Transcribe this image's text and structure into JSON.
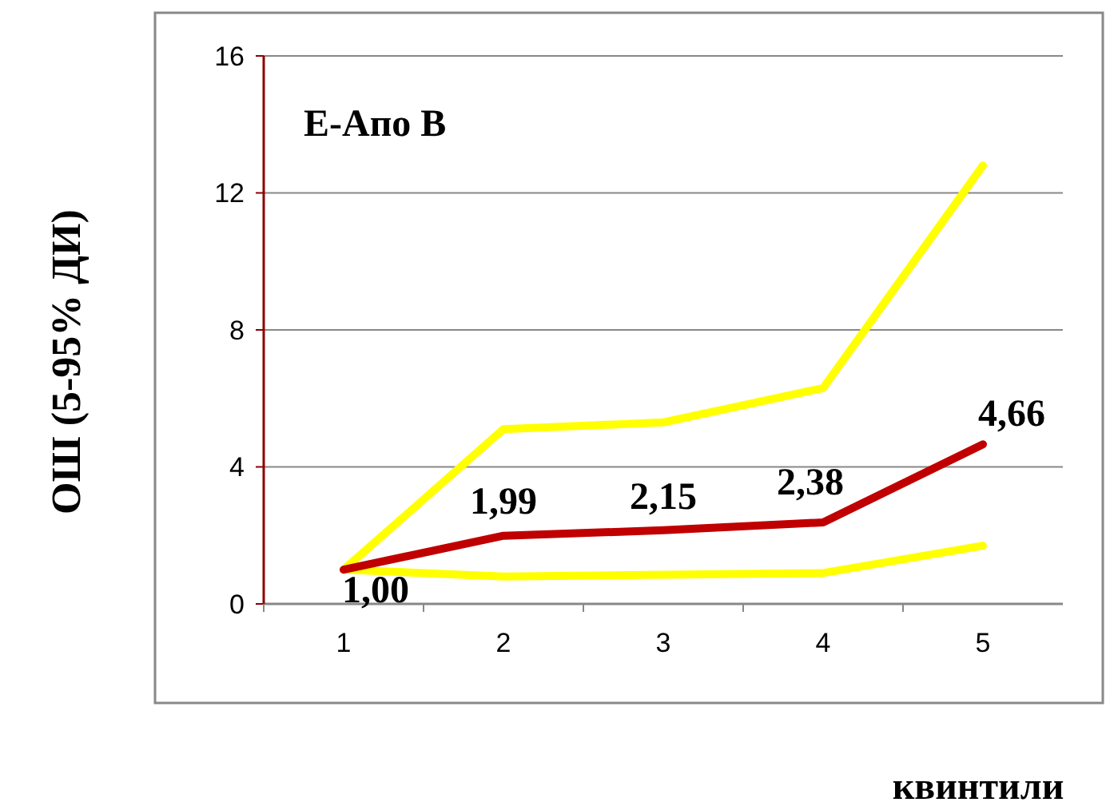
{
  "chart_data": {
    "type": "line",
    "title": "Е-Апо В",
    "xlabel": "квинтили",
    "ylabel": "ОШ (5-95% ДИ)",
    "categories": [
      "1",
      "2",
      "3",
      "4",
      "5"
    ],
    "series": [
      {
        "color": "#ffff00",
        "values": [
          1,
          5.1,
          5.3,
          6.3,
          12.8
        ]
      },
      {
        "color": "#ffff00",
        "values": [
          1,
          0.8,
          0.85,
          0.9,
          1.7
        ]
      },
      {
        "color": "#c00000",
        "values": [
          1.0,
          1.99,
          2.15,
          2.38,
          4.66
        ],
        "value_labels": [
          "1,00",
          "1,99",
          "2,15",
          "2,38",
          "4,66"
        ]
      }
    ],
    "ylim": [
      0,
      16
    ],
    "yticks": [
      0,
      4,
      8,
      12,
      16
    ],
    "grid": "y",
    "marker": "none",
    "line_style": "solid"
  }
}
